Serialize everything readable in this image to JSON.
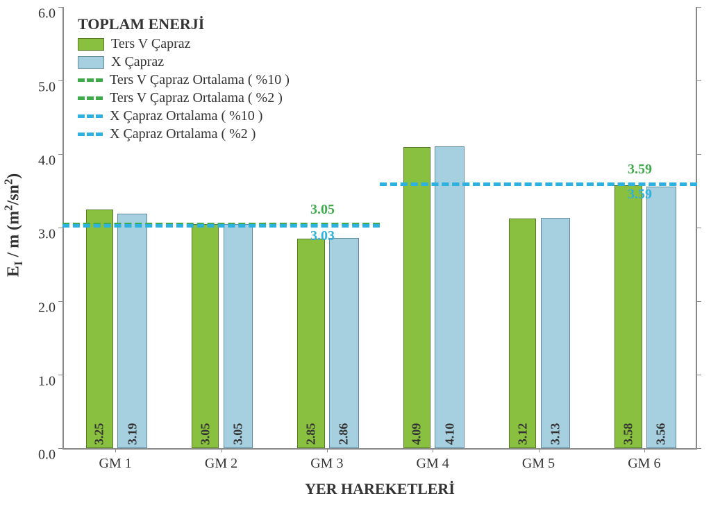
{
  "chart": {
    "type": "bar",
    "background_color": "#ffffff",
    "axis_color": "#888888",
    "text_color": "#333333",
    "font_family": "Times New Roman",
    "title_fontsize": 22,
    "tick_fontsize": 20,
    "bar_label_fontsize": 18,
    "y": {
      "title_html": "E<sub>I</sub> / m  (m<sup>2</sup>/sn<sup>2</sup>)",
      "min": 0.0,
      "max": 6.0,
      "tick_step": 1.0,
      "tick_decimals": 1
    },
    "x": {
      "title": "YER HAREKETLERİ",
      "categories": [
        "GM 1",
        "GM 2",
        "GM 3",
        "GM 4",
        "GM 5",
        "GM 6"
      ]
    },
    "series": [
      {
        "key": "tersV",
        "label": "Ters V Çapraz",
        "fill_color": "#8ac03f",
        "border_color": "#577a28",
        "values": [
          3.25,
          3.05,
          2.85,
          4.09,
          3.12,
          3.58
        ]
      },
      {
        "key": "x",
        "label": "X Çapraz",
        "fill_color": "#a6cfdf",
        "border_color": "#5e8aa0",
        "values": [
          3.19,
          3.05,
          2.86,
          4.1,
          3.13,
          3.56
        ]
      }
    ],
    "bar_group_width_ratio": 0.56,
    "bar_gap_ratio": 0.02,
    "group_domains": [
      {
        "start": 0,
        "end": 3
      },
      {
        "start": 3,
        "end": 6
      }
    ],
    "averages": [
      {
        "key": "tersV_10",
        "label_text": "Ters V Çapraz Ortalama ( %10 )",
        "color": "#3faa4c",
        "value": 3.05,
        "domain": 0,
        "display_value": "3.05",
        "display_value_color": "#3faa4c",
        "display_value_position": "above"
      },
      {
        "key": "x_10",
        "label_text": "X Çapraz Ortalama ( %10 )",
        "color": "#2db1e1",
        "value": 3.03,
        "domain": 0,
        "display_value": "3.03",
        "display_value_color": "#2db1e1",
        "display_value_position": "below"
      },
      {
        "key": "tersV_2",
        "label_text": "Ters V Çapraz Ortalama ( %2 )",
        "color": "#3faa4c",
        "value": 3.59,
        "domain": 1,
        "display_value": "3.59",
        "display_value_color": "#3faa4c",
        "display_value_position": "above"
      },
      {
        "key": "x_2",
        "label_text": "X Çapraz Ortalama ( %2 )",
        "color": "#2db1e1",
        "value": 3.59,
        "domain": 1,
        "display_value": "3.59",
        "display_value_color": "#2db1e1",
        "display_value_position": "below"
      }
    ],
    "legend": {
      "title": "TOPLAM ENERJİ",
      "items": [
        {
          "type": "box",
          "color": "#8ac03f",
          "border": "#577a28",
          "label": "Ters V Çapraz"
        },
        {
          "type": "box",
          "color": "#a6cfdf",
          "border": "#5e8aa0",
          "label": "X Çapraz"
        },
        {
          "type": "dash",
          "color": "#3faa4c",
          "label": "Ters V Çapraz Ortalama ( %10 )"
        },
        {
          "type": "dash",
          "color": "#3faa4c",
          "label": "Ters V Çapraz Ortalama ( %2 )"
        },
        {
          "type": "dash",
          "color": "#2db1e1",
          "label": "X Çapraz Ortalama ( %10 )"
        },
        {
          "type": "dash",
          "color": "#2db1e1",
          "label": "X Çapraz Ortalama ( %2 )"
        }
      ]
    }
  }
}
